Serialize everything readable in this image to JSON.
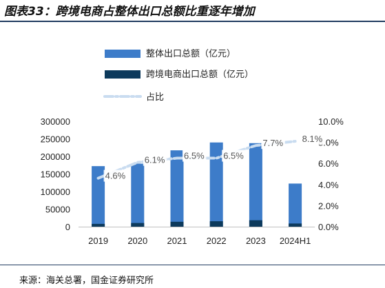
{
  "title": "图表33：跨境电商占整体出口总额比重逐年增加",
  "source": "来源：海关总署，国金证券研究所",
  "colors": {
    "total_bar": "#3d7cc9",
    "cross_border_bar": "#0d3a5c",
    "share_line": "#c9dcf0",
    "label_bg": "#ffffff"
  },
  "chart_data": {
    "type": "bar",
    "categories": [
      "2019",
      "2020",
      "2021",
      "2022",
      "2023",
      "2024H1"
    ],
    "series": [
      {
        "name": "整体出口总额（亿元）",
        "type": "bar",
        "axis": "left",
        "values": [
          172300,
          179300,
          217300,
          239700,
          237700,
          122700
        ]
      },
      {
        "name": "跨境电商出口总额（亿元）",
        "type": "bar",
        "axis": "left",
        "values": [
          8000,
          10500,
          14000,
          15500,
          18300,
          9000
        ]
      },
      {
        "name": "占比",
        "type": "line",
        "axis": "right",
        "values": [
          0.046,
          0.061,
          0.065,
          0.065,
          0.077,
          0.081
        ]
      }
    ],
    "point_labels": [
      "4.6%",
      "6.1%",
      "6.5%",
      "6.5%",
      "7.7%",
      "8.1%"
    ],
    "y_left": {
      "range": [
        0,
        300000
      ],
      "ticks": [
        "0",
        "50000",
        "100000",
        "150000",
        "200000",
        "250000",
        "300000"
      ]
    },
    "y_right": {
      "range": [
        0,
        0.1
      ],
      "ticks": [
        "0.0%",
        "2.0%",
        "4.0%",
        "6.0%",
        "8.0%",
        "10.0%"
      ]
    },
    "legend_position": "top-left",
    "grid": false
  }
}
